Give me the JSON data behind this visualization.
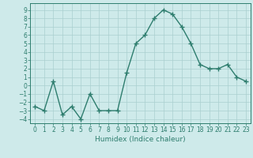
{
  "x": [
    0,
    1,
    2,
    3,
    4,
    5,
    6,
    7,
    8,
    9,
    10,
    11,
    12,
    13,
    14,
    15,
    16,
    17,
    18,
    19,
    20,
    21,
    22,
    23
  ],
  "y": [
    -2.5,
    -3.0,
    0.5,
    -3.5,
    -2.5,
    -4.0,
    -1.0,
    -3.0,
    -3.0,
    -3.0,
    1.5,
    5.0,
    6.0,
    8.0,
    9.0,
    8.5,
    7.0,
    5.0,
    2.5,
    2.0,
    2.0,
    2.5,
    1.0,
    0.5
  ],
  "color": "#2e7d6e",
  "bg_color": "#ceeaea",
  "grid_color": "#aacfcf",
  "xlabel": "Humidex (Indice chaleur)",
  "ylim": [
    -4.5,
    9.8
  ],
  "xlim": [
    -0.5,
    23.5
  ],
  "yticks": [
    -4,
    -3,
    -2,
    -1,
    0,
    1,
    2,
    3,
    4,
    5,
    6,
    7,
    8,
    9
  ],
  "xticks": [
    0,
    1,
    2,
    3,
    4,
    5,
    6,
    7,
    8,
    9,
    10,
    11,
    12,
    13,
    14,
    15,
    16,
    17,
    18,
    19,
    20,
    21,
    22,
    23
  ],
  "marker": "+",
  "linewidth": 1.0,
  "markersize": 4,
  "tick_fontsize": 5.5,
  "xlabel_fontsize": 6.5
}
